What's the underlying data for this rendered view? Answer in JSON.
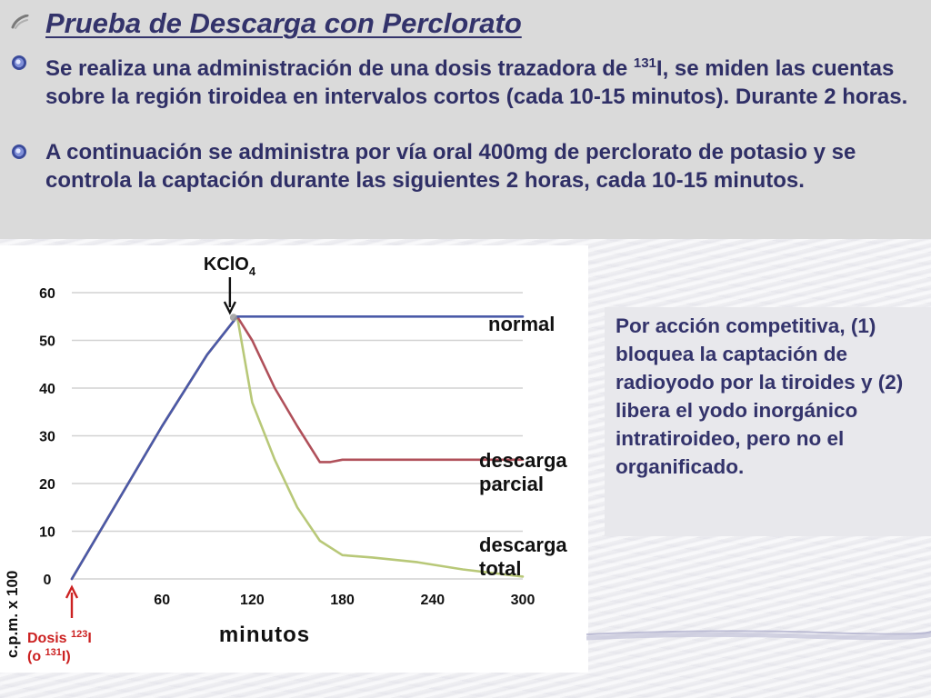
{
  "slide": {
    "title": "Prueba de Descarga con Perclorato",
    "bullets": [
      {
        "pre": "Se realiza una administración de una dosis trazadora de ",
        "sup": "131",
        "post": "I, se miden las cuentas sobre la región tiroidea en intervalos cortos (cada 10-15 minutos). Durante  2 horas."
      },
      {
        "pre": "A continuación se administra por vía oral 400mg  de perclorato de potasio y se controla la captación durante las siguientes 2 horas, cada 10-15 minutos.",
        "sup": "",
        "post": ""
      }
    ],
    "annotation": "Por acción competitiva, (1) bloquea la captación de radioyodo por la tiroides y (2) libera el yodo inorgánico intratiroideo, pero no el organificado."
  },
  "chart_data": {
    "type": "line",
    "ylabel": "c.p.m. x 100",
    "xlabel": "minutos",
    "ylim": [
      0,
      60
    ],
    "xlim": [
      0,
      300
    ],
    "yticks": [
      0,
      10,
      20,
      30,
      40,
      50,
      60
    ],
    "xticks": [
      60,
      120,
      180,
      240,
      300
    ],
    "grid": true,
    "markers": {
      "kclo4": {
        "label_pre": "KClO",
        "label_sub": "4",
        "x": 110
      },
      "dose": {
        "line1_pre": "Dosis ",
        "line1_sup": "123",
        "line1_post": "I",
        "line2_pre": "(o ",
        "line2_sup": "131",
        "line2_post": "I)",
        "x": 0
      }
    },
    "series": [
      {
        "name": "normal",
        "color": "#4a5aa8",
        "x": [
          0,
          30,
          60,
          90,
          105,
          110,
          120,
          150,
          200,
          250,
          300
        ],
        "y": [
          0,
          16,
          32,
          47,
          53,
          55,
          55,
          55,
          55,
          55,
          55
        ]
      },
      {
        "name": "descarga parcial",
        "color": "#b0505a",
        "x": [
          0,
          30,
          60,
          90,
          105,
          110,
          120,
          135,
          150,
          165,
          172,
          180,
          200,
          250,
          300
        ],
        "y": [
          0,
          16,
          32,
          47,
          53,
          55,
          50,
          40,
          32,
          24.5,
          24.5,
          25,
          25,
          25,
          25
        ]
      },
      {
        "name": "descarga total",
        "color": "#b8c878",
        "x": [
          0,
          30,
          60,
          90,
          105,
          110,
          120,
          135,
          150,
          165,
          180,
          200,
          230,
          260,
          300
        ],
        "y": [
          0,
          16,
          32,
          47,
          53,
          55,
          37,
          25,
          15,
          8,
          5,
          4.5,
          3.5,
          2,
          0.5
        ]
      }
    ],
    "series_labels": [
      {
        "lines": [
          "normal"
        ]
      },
      {
        "lines": [
          "descarga",
          "parcial"
        ]
      },
      {
        "lines": [
          "descarga",
          "total"
        ]
      }
    ],
    "colors": {
      "background": "#ffffff",
      "grid": "#d2d2d2",
      "arrow_red": "#cc2222",
      "title": "#33336b"
    }
  }
}
